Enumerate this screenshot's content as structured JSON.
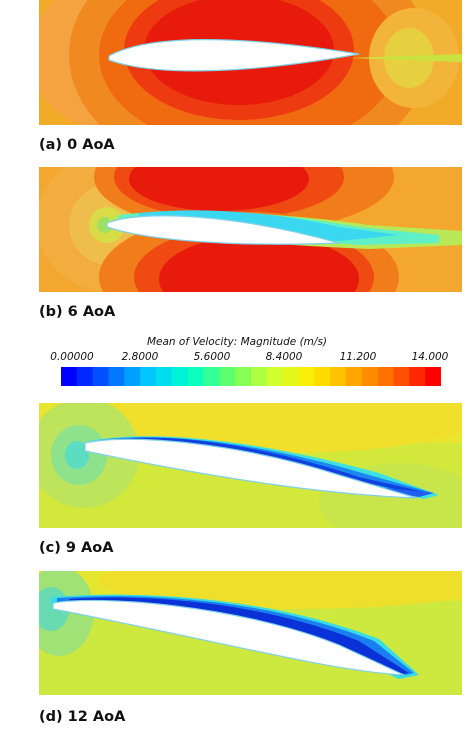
{
  "panels": [
    {
      "caption": "(a) 0 AoA"
    },
    {
      "caption": "(b) 6 AoA"
    },
    {
      "caption": "(c) 9 AoA"
    },
    {
      "caption": "(d) 12 AoA"
    }
  ],
  "colorbar": {
    "title": "Mean of Velocity: Magnitude (m/s)",
    "ticks": [
      "0.00000",
      "2.8000",
      "5.6000",
      "8.4000",
      "11.200",
      "14.000"
    ],
    "range": [
      0,
      14
    ],
    "colors": [
      "#0000ff",
      "#0066ff",
      "#00ccff",
      "#00ffcc",
      "#66ff66",
      "#ccff33",
      "#ffee00",
      "#ffaa00",
      "#ff6600",
      "#ff0000"
    ]
  }
}
